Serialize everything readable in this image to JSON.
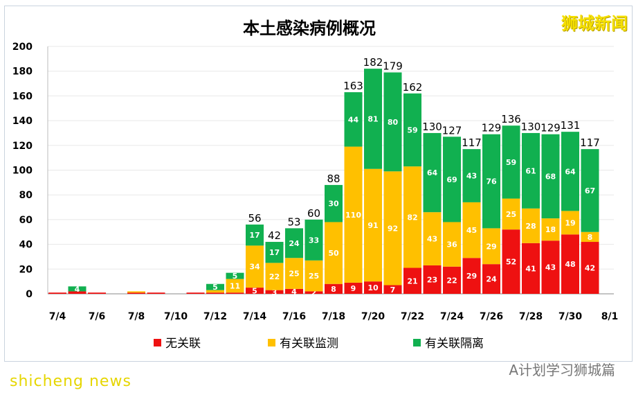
{
  "watermark": "狮城新闻",
  "footer_left": "shicheng news",
  "footer_right": "A计划学习狮城篇",
  "chart_data": {
    "type": "bar",
    "stacked": true,
    "title": "本土感染病例概况",
    "ylim": [
      0,
      200
    ],
    "yticks": [
      0,
      20,
      40,
      60,
      80,
      100,
      120,
      140,
      160,
      180,
      200
    ],
    "xtick_labels": [
      "7/4",
      "7/6",
      "7/8",
      "7/10",
      "7/12",
      "7/14",
      "7/16",
      "7/18",
      "7/20",
      "7/22",
      "7/24",
      "7/26",
      "7/28",
      "7/30",
      "8/1"
    ],
    "categories": [
      "7/4",
      "7/5",
      "7/6",
      "7/7",
      "7/8",
      "7/9",
      "7/10",
      "7/11",
      "7/12",
      "7/13",
      "7/14",
      "7/15",
      "7/16",
      "7/17",
      "7/18",
      "7/19",
      "7/20",
      "7/21",
      "7/22",
      "7/23",
      "7/24",
      "7/25",
      "7/26",
      "7/27",
      "7/28",
      "7/29",
      "7/30",
      "7/31"
    ],
    "series": [
      {
        "name": "无关联",
        "color": "#ee1111",
        "values": [
          1,
          2,
          1,
          0,
          1,
          1,
          0,
          1,
          1,
          1,
          5,
          3,
          4,
          2,
          8,
          9,
          10,
          7,
          21,
          23,
          22,
          29,
          24,
          52,
          41,
          43,
          48,
          42
        ]
      },
      {
        "name": "有关联监测",
        "color": "#ffc000",
        "values": [
          0,
          0,
          0,
          0,
          1,
          0,
          0,
          0,
          2,
          11,
          34,
          22,
          25,
          25,
          50,
          110,
          91,
          92,
          82,
          43,
          36,
          45,
          29,
          25,
          28,
          18,
          19,
          8
        ]
      },
      {
        "name": "有关联隔离",
        "color": "#11b050",
        "values": [
          0,
          4,
          0,
          0,
          0,
          0,
          0,
          0,
          5,
          5,
          17,
          17,
          24,
          33,
          30,
          44,
          81,
          80,
          59,
          64,
          69,
          43,
          76,
          59,
          61,
          68,
          64,
          67
        ]
      }
    ],
    "totals": [
      null,
      null,
      null,
      null,
      null,
      null,
      null,
      null,
      null,
      null,
      56,
      42,
      53,
      60,
      88,
      163,
      182,
      179,
      162,
      130,
      127,
      117,
      129,
      136,
      130,
      129,
      131,
      117
    ],
    "legend": "bottom",
    "grid": true
  }
}
